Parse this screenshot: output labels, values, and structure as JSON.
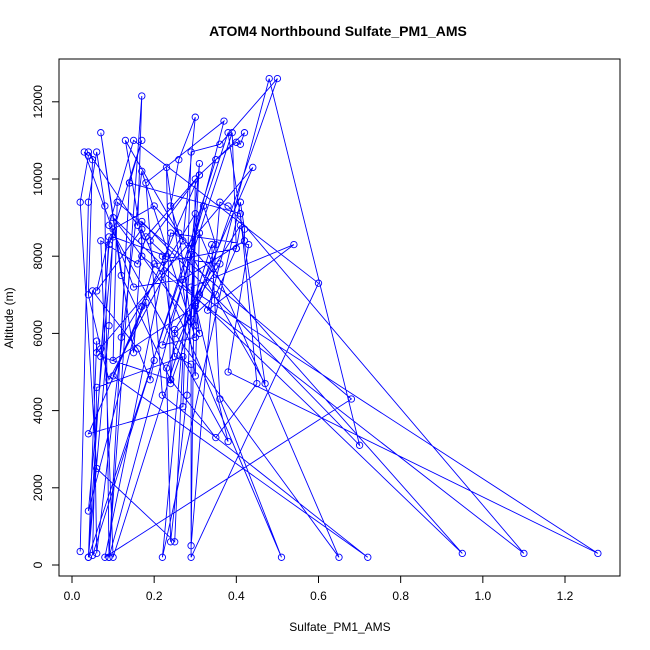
{
  "chart_data": {
    "type": "line",
    "title": "ATOM4 Northbound Sulfate_PM1_AMS",
    "xlabel": "Sulfate_PM1_AMS",
    "ylabel": "Altitude (m)",
    "xlim": [
      0,
      1.3
    ],
    "ylim": [
      0,
      12600
    ],
    "x_ticks": [
      0.0,
      0.2,
      0.4,
      0.6,
      0.8,
      1.0,
      1.2
    ],
    "x_tick_labels": [
      "0.0",
      "0.2",
      "0.4",
      "0.6",
      "0.8",
      "1.0",
      "1.2"
    ],
    "y_ticks": [
      0,
      2000,
      4000,
      6000,
      8000,
      10000,
      12000
    ],
    "y_tick_labels": [
      "0",
      "2000",
      "4000",
      "6000",
      "8000",
      "10000",
      "12000"
    ],
    "grid": false,
    "legend": "none",
    "marker": "open-circle",
    "color": "#0000ff",
    "series": [
      {
        "x": [
          0.02,
          0.04,
          0.06,
          0.08,
          0.09,
          0.17,
          0.16,
          0.04,
          0.05,
          0.04,
          0.07,
          0.09,
          0.27,
          0.3,
          0.26,
          0.24,
          0.26,
          0.29,
          0.31,
          0.22,
          0.41,
          0.42,
          0.42,
          0.27,
          0.15,
          0.03,
          0.04,
          0.02,
          0.06,
          0.25,
          0.27,
          0.06,
          0.05,
          0.35,
          0.4,
          0.41,
          0.42,
          0.31,
          0.18,
          0.16,
          0.07,
          0.1,
          0.34,
          0.36,
          0.51,
          0.17,
          0.06,
          0.09,
          0.04,
          0.06,
          0.06,
          0.44,
          0.23,
          0.24,
          0.28,
          0.3,
          0.12,
          0.14,
          0.17,
          0.09,
          0.07,
          0.24,
          0.25,
          0.41,
          0.4,
          0.39,
          0.22,
          0.3,
          0.17,
          0.06,
          0.05,
          0.16,
          0.19,
          0.2,
          0.18,
          0.04,
          0.27,
          0.29,
          0.36,
          0.5,
          0.24,
          0.23,
          0.3,
          0.31,
          0.65,
          0.25,
          0.35,
          0.4,
          0.2,
          0.17,
          0.04,
          0.1,
          0.23,
          0.19,
          0.31,
          0.1,
          0.72,
          0.22,
          0.18,
          0.37,
          0.29,
          0.3,
          0.3,
          0.1,
          0.11,
          0.68,
          0.08,
          0.24,
          0.43,
          0.38,
          1.28,
          0.31,
          0.35,
          0.32,
          0.09,
          0.14,
          0.41,
          0.45,
          0.35,
          0.24,
          0.12,
          0.07,
          0.15,
          0.17,
          0.13,
          0.47,
          0.38,
          0.04,
          0.09,
          0.1,
          0.2,
          0.95,
          0.1,
          0.31,
          0.3,
          0.36,
          0.22,
          0.25,
          0.29,
          0.29,
          0.6,
          0.15,
          0.09,
          0.38,
          0.29,
          0.54,
          0.33,
          0.48,
          0.7,
          0.17,
          0.17,
          1.1,
          0.38,
          0.36,
          0.29,
          0.3
        ],
        "y": [
          350,
          9400,
          10700,
          9300,
          200,
          12150,
          8800,
          10700,
          10500,
          7000,
          5600,
          4800,
          8400,
          11600,
          10500,
          9300,
          8600,
          6300,
          10400,
          200,
          9400,
          8700,
          8400,
          7400,
          7200,
          10700,
          10600,
          9400,
          2500,
          600,
          5400,
          4600,
          250,
          10500,
          10950,
          10900,
          11200,
          10100,
          8500,
          7800,
          8400,
          200,
          8300,
          4300,
          200,
          8700,
          7100,
          8500,
          200,
          5800,
          5500,
          10300,
          5100,
          600,
          4400,
          9100,
          5900,
          9900,
          11000,
          8300,
          5400,
          4800,
          6100,
          8800,
          8200,
          11200,
          5700,
          5900,
          10200,
          300,
          7100,
          5600,
          4800,
          5300,
          6800,
          3400,
          4100,
          10700,
          10900,
          12600,
          4700,
          10300,
          4900,
          8600,
          200,
          6000,
          7000,
          8200,
          7800,
          6700,
          1400,
          8500,
          8000,
          8400,
          10100,
          4900,
          200,
          4400,
          9900,
          11500,
          8200,
          6200,
          6700,
          5300,
          9400,
          4300,
          200,
          8600,
          8300,
          5000,
          300,
          7000,
          8300,
          9300,
          200,
          9900,
          9100,
          4700,
          3300,
          4800,
          7500,
          11200,
          5500,
          8400,
          11000,
          4700,
          11200,
          200,
          6200,
          8700,
          9300,
          300,
          9000,
          6000,
          6800,
          7800,
          8000,
          5400,
          5200,
          200,
          7300,
          11000,
          8800,
          3200,
          7200,
          8300,
          6600,
          12600,
          3100,
          8900,
          8000,
          300,
          9300,
          9400,
          500,
          10000
        ]
      }
    ]
  }
}
